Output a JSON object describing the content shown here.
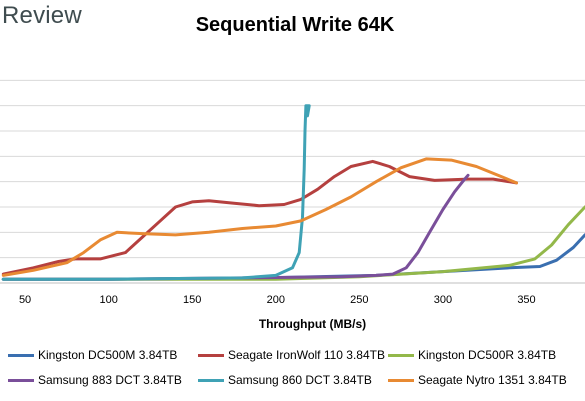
{
  "brand": "Review",
  "chart_data": {
    "type": "line",
    "title": "Sequential Write 64K",
    "xlabel": "Throughput (MB/s)",
    "ylabel": "",
    "xlim": [
      35,
      385
    ],
    "ylim": [
      0,
      9
    ],
    "x_ticks": [
      50,
      100,
      150,
      200,
      250,
      300,
      350
    ],
    "grid": "horizontal",
    "legend_position": "bottom",
    "series": [
      {
        "name": "Kingston DC500M 3.84TB",
        "color": "#3a6fb0",
        "points": [
          [
            37,
            0.15
          ],
          [
            100,
            0.15
          ],
          [
            180,
            0.18
          ],
          [
            260,
            0.3
          ],
          [
            300,
            0.45
          ],
          [
            340,
            0.6
          ],
          [
            358,
            0.65
          ],
          [
            368,
            0.9
          ],
          [
            378,
            1.4
          ],
          [
            385,
            1.9
          ]
        ]
      },
      {
        "name": "Seagate IronWolf 110 3.84TB",
        "color": "#b5403f",
        "points": [
          [
            37,
            0.35
          ],
          [
            55,
            0.6
          ],
          [
            70,
            0.85
          ],
          [
            80,
            0.95
          ],
          [
            95,
            0.95
          ],
          [
            110,
            1.2
          ],
          [
            120,
            1.8
          ],
          [
            130,
            2.4
          ],
          [
            140,
            3.0
          ],
          [
            150,
            3.2
          ],
          [
            160,
            3.25
          ],
          [
            175,
            3.15
          ],
          [
            190,
            3.05
          ],
          [
            205,
            3.1
          ],
          [
            215,
            3.3
          ],
          [
            225,
            3.7
          ],
          [
            235,
            4.2
          ],
          [
            245,
            4.6
          ],
          [
            258,
            4.8
          ],
          [
            268,
            4.6
          ],
          [
            280,
            4.2
          ],
          [
            295,
            4.05
          ],
          [
            315,
            4.1
          ],
          [
            330,
            4.1
          ],
          [
            344,
            3.95
          ]
        ]
      },
      {
        "name": "Kingston DC500R 3.84TB",
        "color": "#93b84a",
        "points": [
          [
            37,
            0.15
          ],
          [
            100,
            0.15
          ],
          [
            200,
            0.15
          ],
          [
            250,
            0.25
          ],
          [
            300,
            0.45
          ],
          [
            340,
            0.7
          ],
          [
            355,
            0.95
          ],
          [
            365,
            1.5
          ],
          [
            375,
            2.3
          ],
          [
            385,
            3.0
          ]
        ]
      },
      {
        "name": "Samsung 883 DCT 3.84TB",
        "color": "#7a4f9a",
        "points": [
          [
            37,
            0.15
          ],
          [
            100,
            0.15
          ],
          [
            180,
            0.2
          ],
          [
            240,
            0.25
          ],
          [
            260,
            0.3
          ],
          [
            270,
            0.35
          ],
          [
            278,
            0.6
          ],
          [
            285,
            1.2
          ],
          [
            292,
            2.0
          ],
          [
            300,
            2.9
          ],
          [
            307,
            3.6
          ],
          [
            313,
            4.1
          ],
          [
            315,
            4.25
          ]
        ]
      },
      {
        "name": "Samsung 860 DCT 3.84TB",
        "color": "#3fa2b5",
        "points": [
          [
            37,
            0.15
          ],
          [
            100,
            0.15
          ],
          [
            180,
            0.2
          ],
          [
            200,
            0.3
          ],
          [
            210,
            0.6
          ],
          [
            214,
            1.2
          ],
          [
            216,
            2.6
          ],
          [
            217,
            4.5
          ],
          [
            217.5,
            6.0
          ],
          [
            218,
            7.0
          ],
          [
            220,
            7.0
          ],
          [
            219,
            6.6
          ]
        ]
      },
      {
        "name": "Seagate Nytro 1351 3.84TB",
        "color": "#e88a33",
        "points": [
          [
            37,
            0.3
          ],
          [
            55,
            0.5
          ],
          [
            75,
            0.8
          ],
          [
            85,
            1.2
          ],
          [
            95,
            1.7
          ],
          [
            105,
            2.0
          ],
          [
            120,
            1.95
          ],
          [
            140,
            1.9
          ],
          [
            160,
            2.0
          ],
          [
            180,
            2.15
          ],
          [
            200,
            2.25
          ],
          [
            215,
            2.45
          ],
          [
            230,
            2.9
          ],
          [
            245,
            3.4
          ],
          [
            260,
            4.0
          ],
          [
            275,
            4.55
          ],
          [
            290,
            4.9
          ],
          [
            305,
            4.85
          ],
          [
            320,
            4.6
          ],
          [
            335,
            4.2
          ],
          [
            344,
            3.95
          ]
        ]
      }
    ]
  }
}
